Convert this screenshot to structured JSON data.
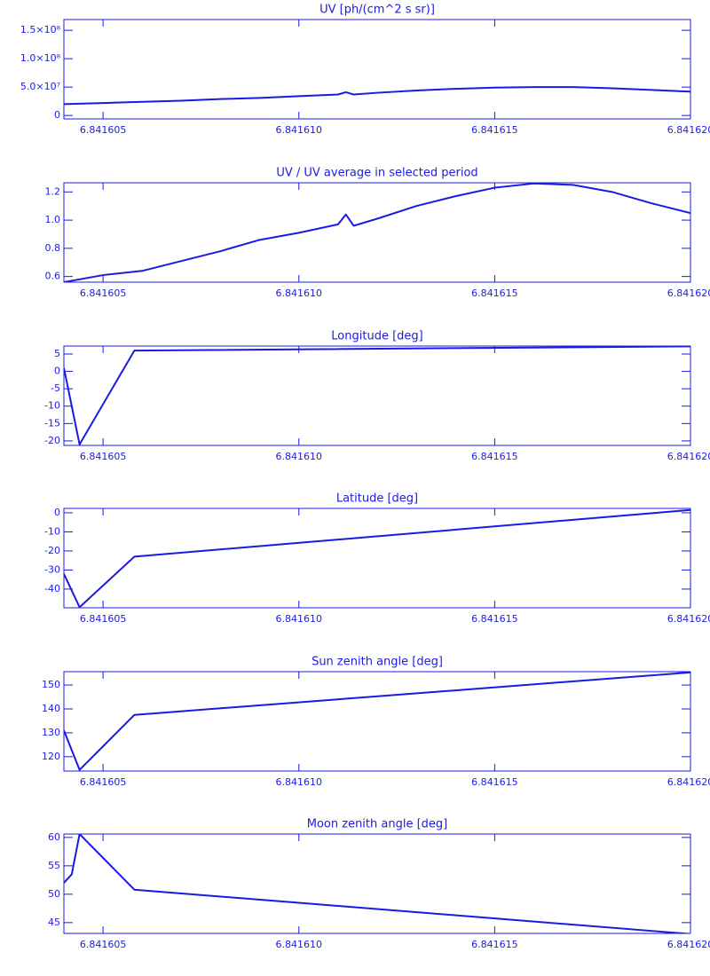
{
  "chart_data": [
    {
      "type": "line",
      "title": "UV [ph/(cm^2 s sr)]",
      "color": "#1a1ae6",
      "x": [
        6.841604,
        6.841605,
        6.841606,
        6.841607,
        6.841608,
        6.841609,
        6.84161,
        6.841611,
        6.8416112,
        6.8416114,
        6.841612,
        6.841613,
        6.841614,
        6.841615,
        6.841616,
        6.841617,
        6.841618,
        6.841619,
        6.84162
      ],
      "values": [
        20000000,
        22000000,
        24000000,
        26000000,
        29000000,
        31000000,
        34000000,
        37000000,
        41000000,
        37000000,
        40000000,
        44000000,
        47000000,
        49000000,
        50000000,
        50000000,
        48000000,
        45000000,
        42000000
      ],
      "xlim": [
        6.841604,
        6.84162
      ],
      "ylim": [
        -6000000,
        169000000
      ],
      "xticks": [
        6.841605,
        {
          "value": 6.84161,
          "label": "6.841610"
        },
        6.841615,
        {
          "value": 6.84162,
          "label": "6.841620"
        }
      ],
      "yticks": [
        0,
        {
          "value": 50000000,
          "label": "5.0×10⁷"
        },
        {
          "value": 100000000,
          "label": "1.0×10⁸"
        },
        {
          "value": 150000000,
          "label": "1.5×10⁸"
        }
      ]
    },
    {
      "type": "line",
      "title": "UV / UV average in selected period",
      "color": "#1a1ae6",
      "x": [
        6.841604,
        6.841605,
        6.841606,
        6.841607,
        6.841608,
        6.841609,
        6.84161,
        6.841611,
        6.8416112,
        6.8416114,
        6.841612,
        6.841613,
        6.841614,
        6.841615,
        6.841616,
        6.841617,
        6.841618,
        6.841619,
        6.84162
      ],
      "values": [
        0.56,
        0.61,
        0.64,
        0.71,
        0.78,
        0.86,
        0.91,
        0.97,
        1.04,
        0.96,
        1.01,
        1.1,
        1.17,
        1.23,
        1.26,
        1.25,
        1.2,
        1.12,
        1.05
      ],
      "xlim": [
        6.841604,
        6.84162
      ],
      "ylim": [
        0.56,
        1.265
      ],
      "xticks": [
        6.841605,
        {
          "value": 6.84161,
          "label": "6.841610"
        },
        6.841615,
        {
          "value": 6.84162,
          "label": "6.841620"
        }
      ],
      "yticks": [
        0.6,
        0.8,
        {
          "value": 1,
          "label": "1.0"
        },
        1.2
      ]
    },
    {
      "type": "line",
      "title": "Longitude [deg]",
      "color": "#1a1ae6",
      "x": [
        6.841604,
        6.8416042,
        6.8416044,
        6.8416058,
        6.84162
      ],
      "values": [
        1,
        -10,
        -21,
        6,
        7.2
      ],
      "xlim": [
        6.841604,
        6.84162
      ],
      "ylim": [
        -21.3,
        7.3
      ],
      "xticks": [
        6.841605,
        {
          "value": 6.84161,
          "label": "6.841610"
        },
        6.841615,
        {
          "value": 6.84162,
          "label": "6.841620"
        }
      ],
      "yticks": [
        -20,
        -15,
        -10,
        -5,
        0,
        5
      ]
    },
    {
      "type": "line",
      "title": "Latitude [deg]",
      "color": "#1a1ae6",
      "x": [
        6.841604,
        6.8416044,
        6.8416058,
        6.84162
      ],
      "values": [
        -32,
        -49.5,
        -23,
        1.5
      ],
      "xlim": [
        6.841604,
        6.84162
      ],
      "ylim": [
        -49.8,
        2.3
      ],
      "xticks": [
        6.841605,
        {
          "value": 6.84161,
          "label": "6.841610"
        },
        6.841615,
        {
          "value": 6.84162,
          "label": "6.841620"
        }
      ],
      "yticks": [
        -40,
        -30,
        -20,
        -10,
        0
      ]
    },
    {
      "type": "line",
      "title": "Sun zenith angle [deg]",
      "color": "#1a1ae6",
      "x": [
        6.841604,
        6.8416044,
        6.8416058,
        6.84162
      ],
      "values": [
        131,
        114.5,
        137.5,
        155.3
      ],
      "xlim": [
        6.841604,
        6.84162
      ],
      "ylim": [
        114,
        155.6
      ],
      "xticks": [
        6.841605,
        {
          "value": 6.84161,
          "label": "6.841610"
        },
        6.841615,
        {
          "value": 6.84162,
          "label": "6.841620"
        }
      ],
      "yticks": [
        120,
        130,
        140,
        150
      ]
    },
    {
      "type": "line",
      "title": "Moon zenith angle [deg]",
      "color": "#1a1ae6",
      "x": [
        6.841604,
        6.8416042,
        6.8416044,
        6.8416058,
        6.84162
      ],
      "values": [
        52,
        53.5,
        60.6,
        50.8,
        43
      ],
      "xlim": [
        6.841604,
        6.84162
      ],
      "ylim": [
        43.1,
        60.6
      ],
      "xticks": [
        6.841605,
        {
          "value": 6.84161,
          "label": "6.841610"
        },
        6.841615,
        {
          "value": 6.84162,
          "label": "6.841620"
        }
      ],
      "yticks": [
        45,
        50,
        55,
        60
      ]
    }
  ]
}
